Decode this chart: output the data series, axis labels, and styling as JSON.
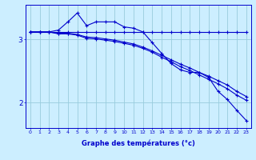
{
  "xlabel": "Graphe des températures (°c)",
  "background_color": "#cceeff",
  "line_color": "#0000cc",
  "grid_color": "#99ccdd",
  "xlim": [
    -0.5,
    23.5
  ],
  "ylim": [
    1.6,
    3.55
  ],
  "yticks": [
    2,
    3
  ],
  "xticks": [
    0,
    1,
    2,
    3,
    4,
    5,
    6,
    7,
    8,
    9,
    10,
    11,
    12,
    13,
    14,
    15,
    16,
    17,
    18,
    19,
    20,
    21,
    22,
    23
  ],
  "series": [
    {
      "x": [
        0,
        1,
        2,
        3,
        4,
        5,
        6,
        7,
        8,
        9,
        10,
        11,
        12,
        13,
        14,
        15,
        16,
        17,
        18,
        19,
        20,
        21,
        22,
        23
      ],
      "y": [
        3.12,
        3.12,
        3.12,
        3.12,
        3.12,
        3.12,
        3.12,
        3.12,
        3.12,
        3.12,
        3.12,
        3.12,
        3.12,
        3.12,
        3.12,
        3.12,
        3.12,
        3.12,
        3.12,
        3.12,
        3.12,
        3.12,
        3.12,
        3.12
      ]
    },
    {
      "x": [
        0,
        1,
        2,
        3,
        4,
        5,
        6,
        7,
        8,
        9,
        10,
        11,
        12,
        13,
        14,
        15,
        16,
        17,
        18,
        19,
        20,
        21,
        22,
        23
      ],
      "y": [
        3.12,
        3.12,
        3.12,
        3.15,
        3.28,
        3.42,
        3.22,
        3.28,
        3.28,
        3.28,
        3.2,
        3.18,
        3.12,
        2.95,
        2.78,
        2.62,
        2.52,
        2.48,
        2.48,
        2.4,
        2.18,
        2.05,
        1.88,
        1.72
      ]
    },
    {
      "x": [
        0,
        1,
        2,
        3,
        4,
        5,
        6,
        7,
        8,
        9,
        10,
        11,
        12,
        13,
        14,
        15,
        16,
        17,
        18,
        19,
        20,
        21,
        22,
        23
      ],
      "y": [
        3.12,
        3.12,
        3.12,
        3.1,
        3.1,
        3.08,
        3.04,
        3.03,
        3.01,
        2.99,
        2.96,
        2.93,
        2.88,
        2.82,
        2.75,
        2.68,
        2.61,
        2.55,
        2.48,
        2.42,
        2.35,
        2.28,
        2.18,
        2.1
      ]
    },
    {
      "x": [
        0,
        1,
        2,
        3,
        4,
        5,
        6,
        7,
        8,
        9,
        10,
        11,
        12,
        13,
        14,
        15,
        16,
        17,
        18,
        19,
        20,
        21,
        22,
        23
      ],
      "y": [
        3.12,
        3.12,
        3.12,
        3.09,
        3.09,
        3.07,
        3.02,
        3.01,
        2.99,
        2.97,
        2.94,
        2.91,
        2.86,
        2.8,
        2.72,
        2.65,
        2.57,
        2.51,
        2.44,
        2.37,
        2.3,
        2.22,
        2.12,
        2.04
      ]
    }
  ]
}
